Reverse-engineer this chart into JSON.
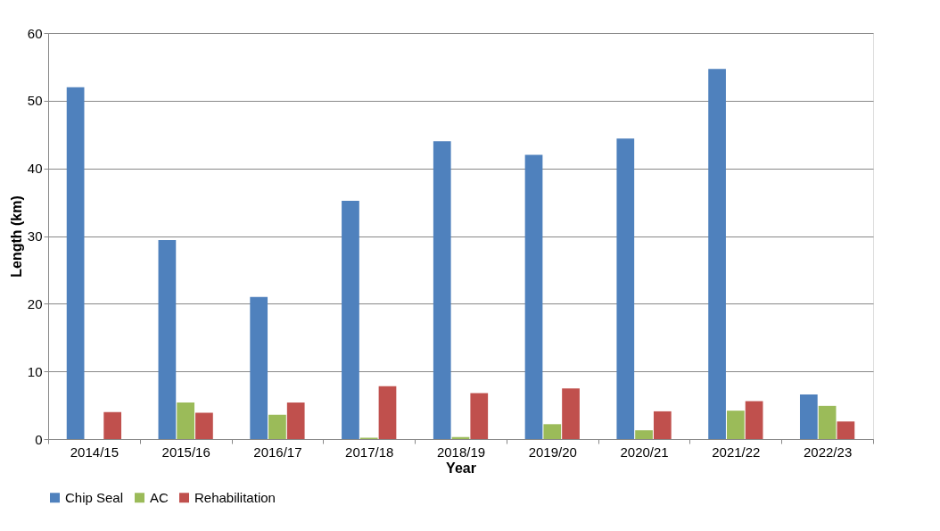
{
  "chart_data": {
    "type": "bar",
    "xlabel": "Year",
    "ylabel": "Length (km)",
    "categories": [
      "2014/15",
      "2015/16",
      "2016/17",
      "2017/18",
      "2018/19",
      "2019/20",
      "2020/21",
      "2021/22",
      "2022/23"
    ],
    "series": [
      {
        "name": "Chip Seal",
        "color": "#4f81bd",
        "values": [
          52,
          29.4,
          21,
          35.2,
          44,
          42,
          44.4,
          54.7,
          6.6
        ]
      },
      {
        "name": "AC",
        "color": "#9bbb59",
        "values": [
          0,
          5.4,
          3.6,
          0.2,
          0.3,
          2.2,
          1.3,
          4.2,
          4.9
        ]
      },
      {
        "name": "Rehabilitation",
        "color": "#c0504d",
        "values": [
          4,
          3.9,
          5.4,
          7.8,
          6.8,
          7.5,
          4.1,
          5.6,
          2.6
        ]
      }
    ],
    "ylim": [
      0,
      60
    ],
    "yticks": [
      0,
      10,
      20,
      30,
      40,
      50,
      60
    ],
    "grid": "y",
    "legend": "bottom"
  }
}
